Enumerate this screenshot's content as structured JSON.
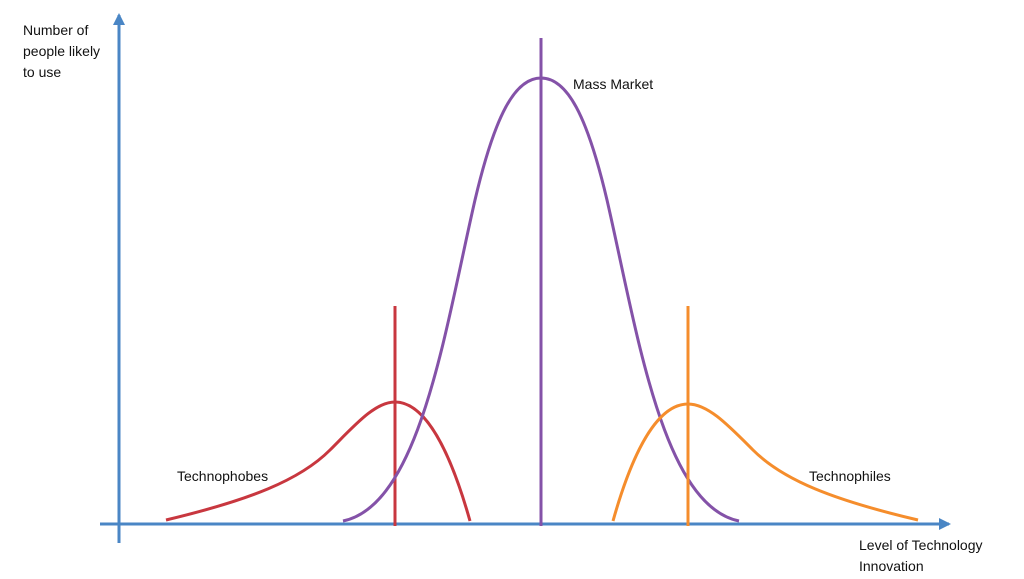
{
  "axes": {
    "y_label": "Number of people likely to use",
    "x_label": "Level of Technology Innovation",
    "color": "#4a86c5"
  },
  "curves": [
    {
      "key": "phobes",
      "label": "Technophobes",
      "color": "#c8373f"
    },
    {
      "key": "mass",
      "label": "Mass Market",
      "color": "#8452a8"
    },
    {
      "key": "philes",
      "label": "Technophiles",
      "color": "#f58d2c"
    }
  ]
}
